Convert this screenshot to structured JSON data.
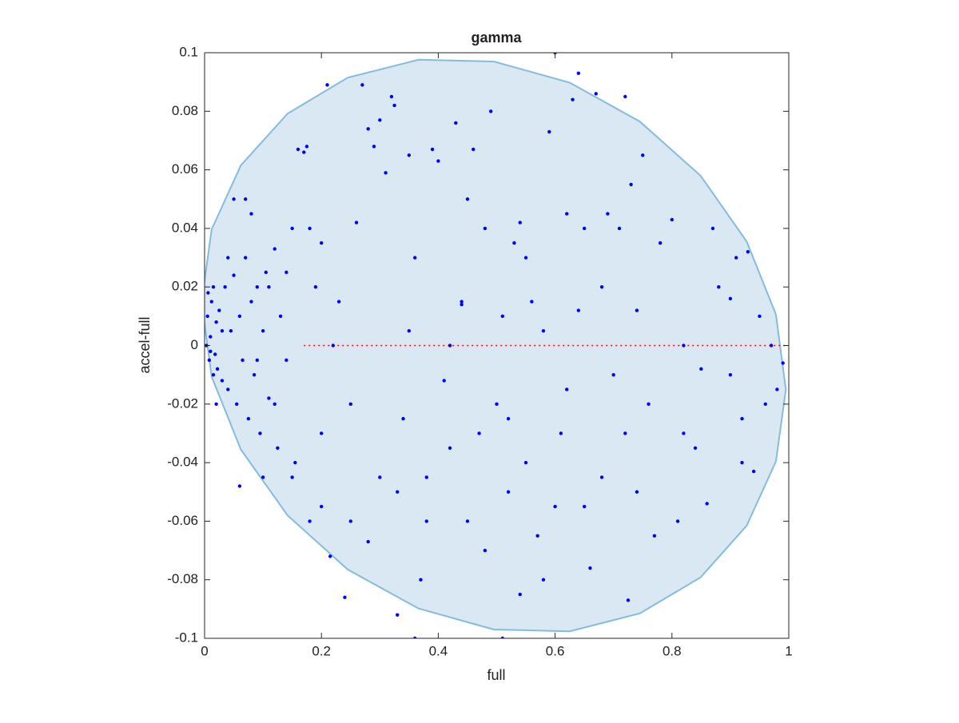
{
  "chart_data": {
    "type": "scatter",
    "title": "gamma",
    "xlabel": "full",
    "ylabel": "accel-full",
    "xlim": [
      0,
      1
    ],
    "ylim": [
      -0.1,
      0.1
    ],
    "xticks": [
      0,
      0.2,
      0.4,
      0.6,
      0.8,
      1
    ],
    "yticks": [
      -0.1,
      -0.08,
      -0.06,
      -0.04,
      -0.02,
      0,
      0.02,
      0.04,
      0.06,
      0.08,
      0.1
    ],
    "grid": false,
    "box": true,
    "series": [
      {
        "style": "region",
        "color": "#d9e8f3",
        "edge_color": "#85bbdc",
        "x": [
          0.995,
          0.978,
          0.928,
          0.849,
          0.745,
          0.625,
          0.495,
          0.366,
          0.245,
          0.142,
          0.062,
          0.012,
          -0.005,
          0.012,
          0.062,
          0.142,
          0.245,
          0.366,
          0.495,
          0.625,
          0.745,
          0.849,
          0.928,
          0.978
        ],
        "y": [
          -0.015,
          0.0106,
          0.0355,
          0.058,
          0.0765,
          0.0898,
          0.097,
          0.0976,
          0.0915,
          0.0792,
          0.0615,
          0.0396,
          0.015,
          -0.0106,
          -0.0355,
          -0.058,
          -0.0765,
          -0.0898,
          -0.097,
          -0.0976,
          -0.0915,
          -0.0792,
          -0.0615,
          -0.0396
        ]
      },
      {
        "style": "dotted-line",
        "color": "#ff0000",
        "x": [
          0.17,
          1
        ],
        "y": [
          0,
          0
        ]
      },
      {
        "style": "points",
        "color": "#0000ff",
        "x": [
          0.005,
          0.008,
          0.01,
          0.012,
          0.015,
          0.003,
          0.02,
          0.018,
          0.025,
          0.03,
          0.006,
          0.01,
          0.035,
          0.04,
          0.045,
          0.05,
          0.055,
          0.06,
          0.065,
          0.07,
          0.075,
          0.08,
          0.085,
          0.09,
          0.095,
          0.1,
          0.105,
          0.11,
          0.12,
          0.125,
          0.13,
          0.14,
          0.15,
          0.155,
          0.16,
          0.17,
          0.175,
          0.18,
          0.19,
          0.2,
          0.21,
          0.215,
          0.22,
          0.23,
          0.24,
          0.25,
          0.27,
          0.28,
          0.29,
          0.3,
          0.31,
          0.32,
          0.325,
          0.33,
          0.34,
          0.35,
          0.36,
          0.37,
          0.38,
          0.39,
          0.4,
          0.41,
          0.42,
          0.43,
          0.44,
          0.45,
          0.46,
          0.47,
          0.48,
          0.49,
          0.5,
          0.51,
          0.52,
          0.53,
          0.54,
          0.55,
          0.56,
          0.57,
          0.58,
          0.59,
          0.6,
          0.61,
          0.62,
          0.63,
          0.64,
          0.65,
          0.66,
          0.67,
          0.68,
          0.69,
          0.7,
          0.71,
          0.72,
          0.725,
          0.73,
          0.74,
          0.76,
          0.77,
          0.78,
          0.8,
          0.81,
          0.82,
          0.84,
          0.86,
          0.87,
          0.88,
          0.9,
          0.91,
          0.92,
          0.93,
          0.94,
          0.95,
          0.96,
          0.97,
          0.98,
          0.99,
          0.33,
          0.36,
          0.51,
          0.6,
          0.28,
          0.3,
          0.25,
          0.2,
          0.15,
          0.12,
          0.1,
          0.06,
          0.14,
          0.2,
          0.18,
          0.26,
          0.35,
          0.45,
          0.55,
          0.65,
          0.75,
          0.85,
          0.9,
          0.68,
          0.58,
          0.48,
          0.38,
          0.42,
          0.52,
          0.62,
          0.72,
          0.82,
          0.92,
          0.44,
          0.54,
          0.64,
          0.74,
          0.08,
          0.07,
          0.05,
          0.11,
          0.02,
          0.04,
          0.09,
          0.03,
          0.015,
          0.022
        ],
        "y": [
          0.01,
          -0.005,
          0.003,
          0.015,
          -0.01,
          0,
          0.008,
          -0.003,
          0.012,
          -0.012,
          0.018,
          -0.002,
          0.02,
          -0.015,
          0.005,
          0.024,
          -0.02,
          0.01,
          -0.005,
          0.03,
          -0.025,
          0.015,
          -0.01,
          0.02,
          -0.03,
          0.005,
          0.025,
          -0.018,
          0.033,
          -0.035,
          0.01,
          -0.005,
          0.04,
          -0.04,
          0.067,
          0.066,
          0.068,
          -0.06,
          0.02,
          -0.03,
          0.089,
          -0.072,
          0,
          0.015,
          -0.086,
          -0.02,
          0.089,
          0.074,
          0.068,
          0.077,
          0.059,
          0.085,
          0.082,
          -0.092,
          -0.025,
          0.065,
          0.03,
          -0.08,
          -0.045,
          0.067,
          0.063,
          -0.012,
          0,
          0.076,
          0.014,
          -0.06,
          0.067,
          -0.03,
          0.04,
          0.08,
          -0.02,
          0.01,
          -0.05,
          0.035,
          -0.085,
          -0.04,
          0.015,
          -0.065,
          0.005,
          0.073,
          0.1,
          -0.03,
          0.045,
          0.084,
          0.093,
          -0.055,
          -0.076,
          0.086,
          0.02,
          0.045,
          -0.01,
          0.04,
          0.085,
          -0.087,
          0.055,
          -0.05,
          -0.02,
          -0.065,
          0.035,
          0.043,
          -0.06,
          0,
          -0.035,
          -0.054,
          0.04,
          0.02,
          -0.01,
          0.03,
          -0.04,
          0.032,
          -0.043,
          0.01,
          -0.02,
          0,
          -0.015,
          -0.006,
          -0.05,
          -0.1,
          -0.1,
          -0.055,
          -0.067,
          -0.045,
          -0.06,
          -0.055,
          -0.045,
          -0.02,
          -0.045,
          -0.048,
          0.025,
          0.035,
          0.04,
          0.042,
          0.005,
          0.05,
          0.03,
          0.04,
          0.065,
          -0.008,
          0.016,
          -0.045,
          -0.08,
          -0.07,
          -0.06,
          -0.035,
          -0.025,
          -0.015,
          -0.03,
          -0.03,
          -0.025,
          0.015,
          0.042,
          0.012,
          0.012,
          0.045,
          0.05,
          0.05,
          0.02,
          -0.02,
          0.03,
          -0.005,
          0.005,
          0.02,
          -0.008
        ]
      }
    ]
  }
}
